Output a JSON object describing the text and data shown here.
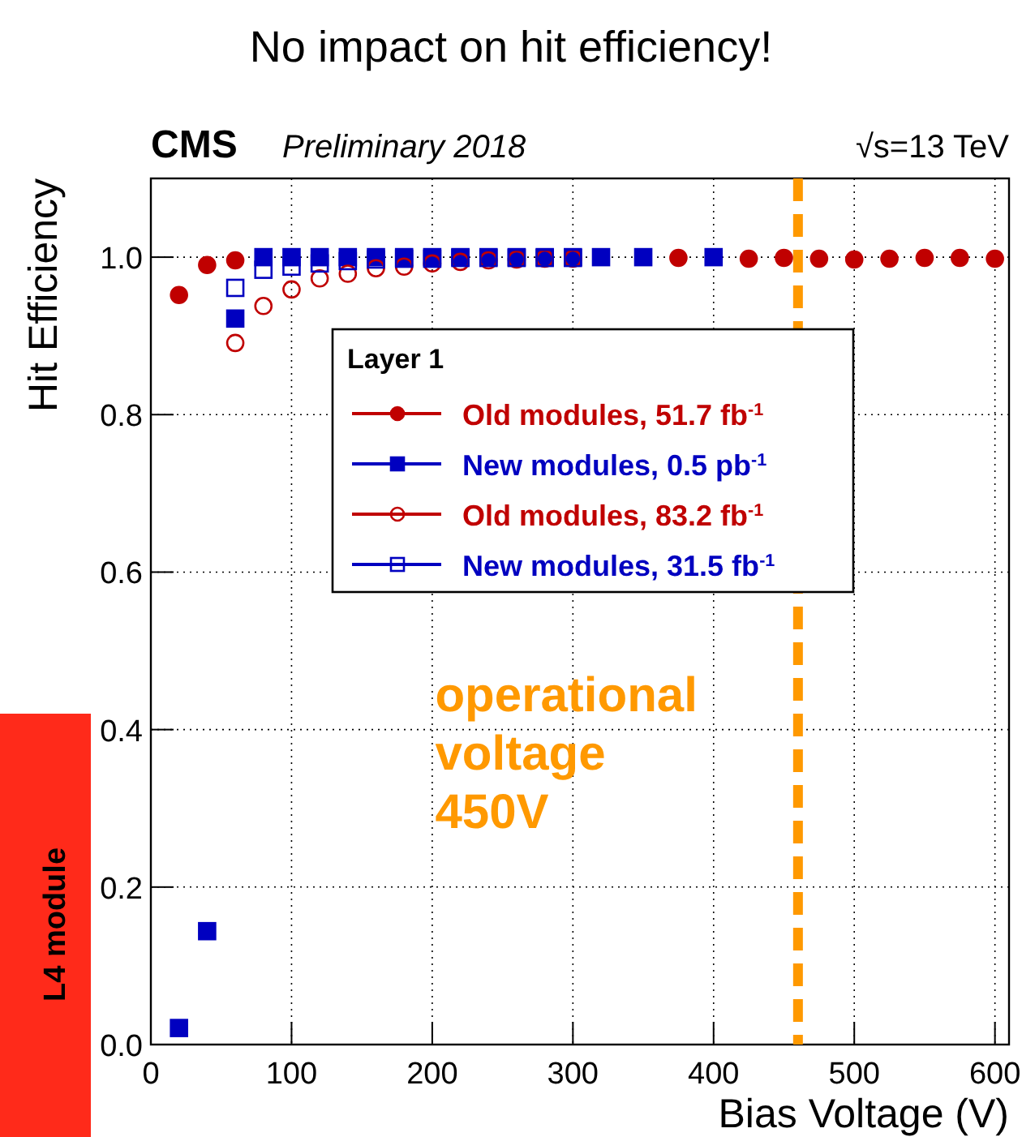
{
  "chart_data": {
    "type": "scatter",
    "title": "No impact on hit efficiency!",
    "xlabel": "Bias Voltage (V)",
    "ylabel": "Hit Efficiency",
    "legend_title": "Layer 1",
    "legend": "right",
    "grid": true,
    "xlim": [
      0,
      610
    ],
    "xticks": [
      0,
      100,
      200,
      300,
      400,
      500,
      600
    ],
    "ylim": [
      0,
      1.1
    ],
    "yticks": [
      {
        "value": 0,
        "label": "0.0"
      },
      {
        "value": 0.2,
        "label": "0.2"
      },
      {
        "value": 0.4,
        "label": "0.4"
      },
      {
        "value": 0.6,
        "label": "0.6"
      },
      {
        "value": 0.8,
        "label": "0.8"
      },
      {
        "value": 1,
        "label": "1.0"
      }
    ],
    "series": [
      {
        "name": "Old modules, 51.7 fb$^{-1}$",
        "color": "#c00000",
        "marker": "circle",
        "x": [
          20,
          40,
          60,
          375,
          425,
          450,
          475,
          500,
          525,
          550,
          575,
          600
        ],
        "values": [
          0.952,
          0.99,
          0.996,
          0.999,
          0.998,
          0.999,
          0.998,
          0.997,
          0.998,
          0.999,
          0.999,
          0.998
        ],
        "errors": [
          0.007,
          0.004,
          null,
          null,
          null,
          null,
          null,
          null,
          null,
          null,
          null,
          null
        ]
      },
      {
        "name": "New modules, 0.5 pb$^{-1}$",
        "color": "#0000c0",
        "marker": "square",
        "x": [
          20,
          40,
          60,
          80,
          100,
          120,
          140,
          160,
          180,
          200,
          220,
          240,
          260,
          280,
          300,
          320,
          350,
          400
        ],
        "values": [
          0.021,
          0.144,
          0.922,
          1,
          1,
          1,
          1,
          1,
          1,
          1,
          1,
          1,
          1,
          1,
          1,
          1,
          1,
          1
        ],
        "errors": [
          null,
          0.01,
          0.006,
          null,
          null,
          null,
          null,
          null,
          null,
          null,
          null,
          null,
          null,
          null,
          null,
          null,
          null,
          null
        ]
      },
      {
        "name": "Old modules, 83.2 fb$^{-1}$",
        "color": "#c00000",
        "marker": "circle",
        "x": [
          60,
          80,
          100,
          120,
          140,
          160,
          180,
          200,
          220,
          240,
          260,
          280,
          300
        ],
        "values": [
          0.891,
          0.938,
          0.959,
          0.973,
          0.979,
          0.986,
          0.988,
          0.992,
          0.994,
          0.996,
          0.997,
          0.998,
          0.998
        ]
      },
      {
        "name": "New modules, 31.5 fb$^{-1}$",
        "color": "#0000c0",
        "marker": "square",
        "x": [
          60,
          80,
          100,
          120,
          140,
          160,
          180,
          200,
          220,
          240,
          260,
          280,
          300
        ],
        "values": [
          0.961,
          0.984,
          0.988,
          0.992,
          0.995,
          0.997,
          0.998,
          0.998,
          0.999,
          0.999,
          0.999,
          0.999,
          0.999
        ]
      }
    ],
    "ref_lines": [
      {
        "axis": "x",
        "value": 460,
        "label": null,
        "color": "#ff9900",
        "line_style": "dashed"
      }
    ],
    "annotations": [
      "CMS",
      "Preliminary 2018",
      "√s=13 TeV",
      "operational voltage 450V",
      "L4 module"
    ]
  }
}
